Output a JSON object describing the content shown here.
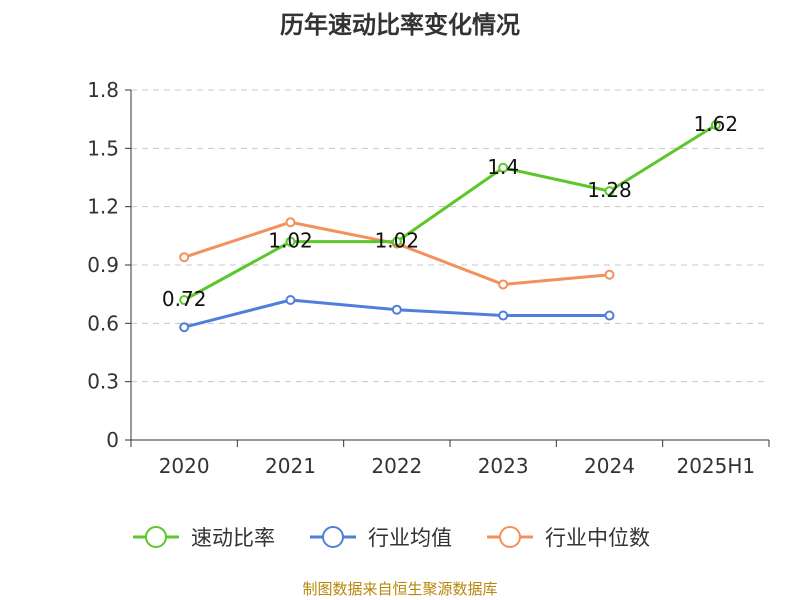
{
  "chart_data": {
    "type": "line",
    "title": "历年速动比率变化情况",
    "xlabel": "",
    "ylabel": "",
    "categories": [
      "2020",
      "2021",
      "2022",
      "2023",
      "2024",
      "2025H1"
    ],
    "ylim": [
      0,
      1.8
    ],
    "yticks": [
      "0",
      "0.3",
      "0.6",
      "0.9",
      "1.2",
      "1.5",
      "1.8"
    ],
    "grid": true,
    "legend_position": "bottom",
    "series": [
      {
        "name": "速动比率",
        "color": "#5cc72b",
        "values": [
          0.72,
          1.02,
          1.02,
          1.4,
          1.28,
          1.62
        ],
        "labels": [
          "0.72",
          "1.02",
          "1.02",
          "1.4",
          "1.28",
          "1.62"
        ]
      },
      {
        "name": "行业均值",
        "color": "#4f7fdb",
        "values": [
          0.58,
          0.72,
          0.67,
          0.64,
          0.64,
          null
        ]
      },
      {
        "name": "行业中位数",
        "color": "#f4905c",
        "values": [
          0.94,
          1.12,
          1.01,
          0.8,
          0.85,
          null
        ]
      }
    ]
  },
  "footer": {
    "source": "制图数据来自恒生聚源数据库"
  }
}
